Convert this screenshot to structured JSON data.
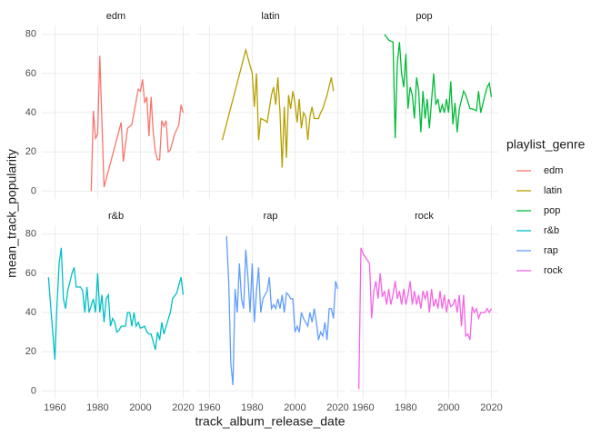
{
  "figure": {
    "x_label": "track_album_release_date",
    "y_label": "mean_track_popularity",
    "legend_title": "playlist_genre"
  },
  "chart_data": [
    {
      "type": "line",
      "title": "edm",
      "xlim": [
        1953.9,
        2023.2
      ],
      "ylim": [
        -4,
        84.5
      ],
      "xticks": [
        1960,
        1980,
        2000,
        2020
      ],
      "yticks": [
        0,
        20,
        40,
        60,
        80
      ],
      "grid": true,
      "series": [
        {
          "name": "edm",
          "color": "#F8766D",
          "x": [
            1977,
            1978,
            1979,
            1980,
            1981,
            1983,
            1991,
            1992,
            1994,
            1996,
            1998,
            1999,
            2000,
            2001,
            2002,
            2003,
            2004,
            2005,
            2006,
            2007,
            2008,
            2009,
            2010,
            2011,
            2012,
            2013,
            2014,
            2016,
            2018,
            2019,
            2020
          ],
          "values": [
            0,
            41,
            27,
            29,
            69,
            2,
            35,
            15,
            32,
            34,
            46,
            52,
            51,
            57,
            45,
            48,
            28,
            48,
            30,
            20,
            16,
            16,
            36,
            33,
            36,
            20,
            21,
            29,
            34,
            44,
            40
          ]
        }
      ]
    },
    {
      "type": "line",
      "title": "latin",
      "xlim": [
        1953.9,
        2023.2
      ],
      "ylim": [
        -4,
        84.5
      ],
      "xticks": [
        1960,
        1980,
        2000,
        2020
      ],
      "yticks": [
        0,
        20,
        40,
        60,
        80
      ],
      "grid": true,
      "series": [
        {
          "name": "latin",
          "color": "#B79F00",
          "x": [
            1966,
            1977,
            1980,
            1981,
            1982,
            1983,
            1984,
            1986,
            1987,
            1989,
            1990,
            1991,
            1992,
            1993,
            1994,
            1995,
            1996,
            1997,
            1998,
            1999,
            2000,
            2001,
            2002,
            2003,
            2004,
            2005,
            2006,
            2007,
            2008,
            2009,
            2011,
            2012,
            2013,
            2015,
            2017,
            2018
          ],
          "values": [
            26,
            72,
            60,
            43,
            60,
            26,
            37,
            36,
            35,
            49,
            53,
            44,
            58,
            40,
            12,
            43,
            17,
            49,
            42,
            51,
            45,
            35,
            47,
            32,
            40,
            38,
            26,
            38,
            43,
            37,
            37,
            40,
            42,
            49,
            58,
            51
          ]
        }
      ]
    },
    {
      "type": "line",
      "title": "pop",
      "xlim": [
        1953.9,
        2023.2
      ],
      "ylim": [
        -4,
        84.5
      ],
      "xticks": [
        1960,
        1980,
        2000,
        2020
      ],
      "yticks": [
        0,
        20,
        40,
        60,
        80
      ],
      "grid": true,
      "series": [
        {
          "name": "pop",
          "color": "#00BA38",
          "x": [
            1970,
            1972,
            1974,
            1975,
            1976,
            1977,
            1978,
            1979,
            1980,
            1981,
            1982,
            1983,
            1984,
            1985,
            1986,
            1987,
            1988,
            1989,
            1990,
            1991,
            1993,
            1994,
            1995,
            1996,
            1997,
            1998,
            1999,
            2000,
            2001,
            2002,
            2003,
            2004,
            2005,
            2007,
            2008,
            2010,
            2011,
            2013,
            2014,
            2015,
            2017,
            2018,
            2019,
            2020
          ],
          "values": [
            80,
            77,
            76,
            27,
            65,
            76,
            60,
            53,
            70,
            42,
            53,
            49,
            37,
            58,
            51,
            30,
            51,
            37,
            47,
            32,
            60,
            44,
            47,
            40,
            44,
            40,
            47,
            40,
            56,
            34,
            45,
            30,
            42,
            51,
            49,
            42,
            42,
            41,
            51,
            40,
            49,
            53,
            55,
            48
          ]
        }
      ]
    },
    {
      "type": "line",
      "title": "r&b",
      "xlim": [
        1953.9,
        2023.2
      ],
      "ylim": [
        -4,
        84.5
      ],
      "xticks": [
        1960,
        1980,
        2000,
        2020
      ],
      "yticks": [
        0,
        20,
        40,
        60,
        80
      ],
      "grid": true,
      "series": [
        {
          "name": "r&b",
          "color": "#00BFC4",
          "x": [
            1957,
            1960,
            1961,
            1962,
            1963,
            1964,
            1965,
            1966,
            1968,
            1969,
            1970,
            1972,
            1973,
            1974,
            1975,
            1976,
            1978,
            1979,
            1980,
            1981,
            1982,
            1983,
            1984,
            1985,
            1986,
            1987,
            1988,
            1989,
            1990,
            1991,
            1993,
            1994,
            1995,
            1996,
            1997,
            1998,
            1999,
            2000,
            2002,
            2003,
            2004,
            2005,
            2007,
            2008,
            2009,
            2010,
            2011,
            2012,
            2014,
            2015,
            2017,
            2019,
            2020
          ],
          "values": [
            58,
            16,
            44,
            65,
            73,
            47,
            42,
            51,
            60,
            63,
            53,
            53,
            51,
            40,
            53,
            40,
            47,
            40,
            60,
            40,
            49,
            35,
            47,
            49,
            33,
            37,
            35,
            30,
            31,
            33,
            33,
            40,
            40,
            33,
            40,
            33,
            35,
            32,
            33,
            30,
            29,
            29,
            21,
            30,
            26,
            35,
            29,
            33,
            40,
            47,
            50,
            58,
            49
          ]
        }
      ]
    },
    {
      "type": "line",
      "title": "rap",
      "xlim": [
        1953.9,
        2023.2
      ],
      "ylim": [
        -4,
        84.5
      ],
      "xticks": [
        1960,
        1980,
        2000,
        2020
      ],
      "yticks": [
        0,
        20,
        40,
        60,
        80
      ],
      "grid": true,
      "series": [
        {
          "name": "rap",
          "color": "#619CFF",
          "x": [
            1968,
            1969,
            1970,
            1971,
            1972,
            1973,
            1974,
            1975,
            1976,
            1977,
            1978,
            1979,
            1980,
            1981,
            1982,
            1983,
            1984,
            1985,
            1987,
            1988,
            1989,
            1990,
            1991,
            1992,
            1993,
            1994,
            1995,
            1996,
            1997,
            1998,
            1999,
            2000,
            2001,
            2002,
            2003,
            2004,
            2006,
            2007,
            2008,
            2009,
            2010,
            2011,
            2012,
            2013,
            2014,
            2015,
            2016,
            2017,
            2018,
            2019,
            2020
          ],
          "values": [
            79,
            56,
            14,
            3,
            52,
            40,
            65,
            47,
            42,
            72,
            58,
            40,
            65,
            35,
            51,
            63,
            40,
            47,
            51,
            58,
            42,
            44,
            42,
            47,
            42,
            49,
            40,
            50,
            49,
            47,
            47,
            30,
            33,
            30,
            40,
            37,
            33,
            40,
            35,
            42,
            35,
            26,
            30,
            28,
            35,
            26,
            42,
            42,
            37,
            56,
            52
          ]
        }
      ]
    },
    {
      "type": "line",
      "title": "rock",
      "xlim": [
        1953.9,
        2023.2
      ],
      "ylim": [
        -4,
        84.5
      ],
      "xticks": [
        1960,
        1980,
        2000,
        2020
      ],
      "yticks": [
        0,
        20,
        40,
        60,
        80
      ],
      "grid": true,
      "series": [
        {
          "name": "rock",
          "color": "#F564E3",
          "x": [
            1958,
            1959,
            1960,
            1963,
            1964,
            1965,
            1966,
            1967,
            1968,
            1969,
            1970,
            1971,
            1972,
            1973,
            1974,
            1975,
            1976,
            1977,
            1978,
            1979,
            1980,
            1981,
            1982,
            1983,
            1984,
            1985,
            1986,
            1987,
            1988,
            1989,
            1990,
            1991,
            1992,
            1993,
            1994,
            1995,
            1996,
            1997,
            1998,
            1999,
            2000,
            2001,
            2002,
            2003,
            2004,
            2005,
            2006,
            2007,
            2008,
            2009,
            2010,
            2011,
            2012,
            2013,
            2014,
            2015,
            2016,
            2017,
            2018,
            2019,
            2020
          ],
          "values": [
            1,
            73,
            70,
            65,
            37,
            51,
            56,
            47,
            60,
            48,
            51,
            44,
            52,
            44,
            49,
            56,
            47,
            51,
            44,
            52,
            44,
            49,
            56,
            44,
            51,
            44,
            49,
            42,
            51,
            47,
            51,
            40,
            52,
            43,
            47,
            42,
            51,
            42,
            49,
            40,
            47,
            43,
            44,
            47,
            40,
            49,
            33,
            49,
            28,
            29,
            26,
            43,
            40,
            42,
            37,
            40,
            40,
            40,
            42,
            40,
            42
          ]
        }
      ]
    }
  ]
}
